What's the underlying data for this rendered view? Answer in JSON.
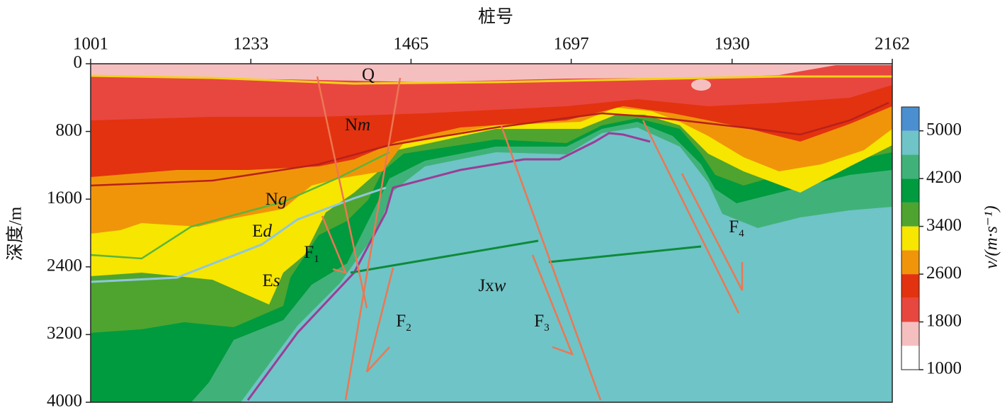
{
  "chart_data": {
    "type": "velocity-section",
    "title": "桩号",
    "y_label": "深度/m",
    "xlim": [
      1001,
      2162
    ],
    "xticks": [
      1001,
      1233,
      1465,
      1697,
      1930,
      2162
    ],
    "ylim": [
      0,
      4000
    ],
    "yticks": [
      0,
      800,
      1600,
      2400,
      3200,
      4000
    ],
    "y_inverted": true,
    "colorbar": {
      "label": "v/(m·s⁻¹)",
      "lim": [
        1000,
        5400
      ],
      "ticks": [
        1000,
        1800,
        2600,
        3400,
        4200,
        5000
      ],
      "bins": [
        1000,
        1400,
        1800,
        2200,
        2600,
        3000,
        3400,
        3800,
        4200,
        4600,
        5000,
        5400
      ],
      "colors": [
        "#ffffff",
        "#f5bfbf",
        "#e8473f",
        "#e3320f",
        "#f0950a",
        "#f6e600",
        "#4ea42f",
        "#009a3f",
        "#40b279",
        "#6fc4c7",
        "#4a8fcf"
      ]
    },
    "labels": [
      {
        "text": "Q"
      },
      {
        "text": "N",
        "italic": "m"
      },
      {
        "text": "N",
        "italic": "g"
      },
      {
        "text": "E",
        "italic": "d"
      },
      {
        "text": "E",
        "italic": "s"
      },
      {
        "text": "Jx",
        "italic": "w"
      },
      {
        "text": "F",
        "sub": "1"
      },
      {
        "text": "F",
        "sub": "2"
      },
      {
        "text": "F",
        "sub": "3"
      },
      {
        "text": "F",
        "sub": "4"
      }
    ]
  }
}
